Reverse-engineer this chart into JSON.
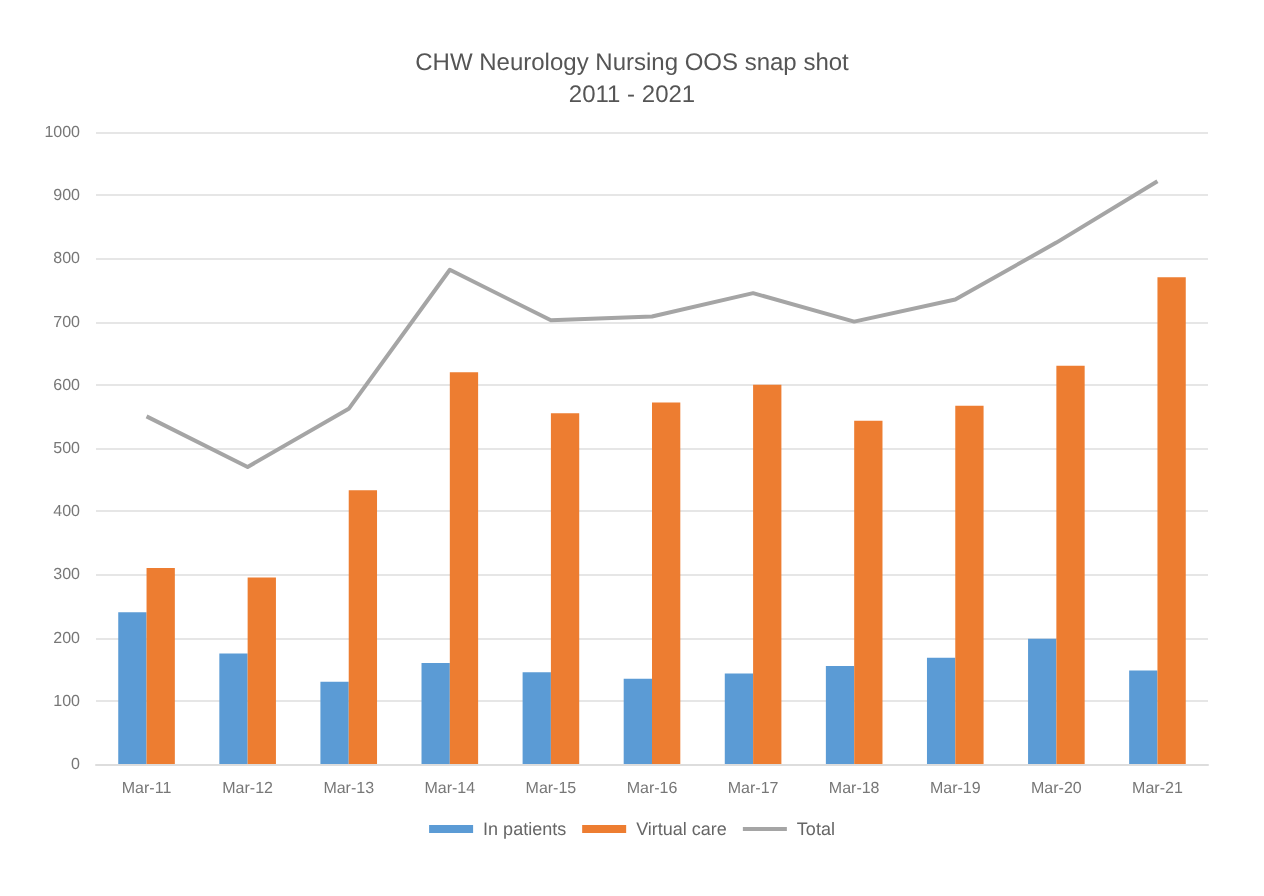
{
  "chart_data": {
    "type": "bar",
    "title": "CHW Neurology Nursing OOS snap shot\n2011 - 2021",
    "categories": [
      "Mar-11",
      "Mar-12",
      "Mar-13",
      "Mar-14",
      "Mar-15",
      "Mar-16",
      "Mar-17",
      "Mar-18",
      "Mar-19",
      "Mar-20",
      "Mar-21"
    ],
    "series": [
      {
        "name": "In patients",
        "color": "#5b9bd5",
        "values": [
          240,
          175,
          130,
          160,
          145,
          135,
          143,
          155,
          168,
          198,
          148
        ]
      },
      {
        "name": "Virtual care",
        "color": "#ed7d31",
        "values": [
          310,
          295,
          433,
          620,
          555,
          572,
          600,
          543,
          567,
          630,
          770
        ]
      },
      {
        "name": "Total",
        "type": "line",
        "color": "#a5a5a5",
        "values": [
          550,
          470,
          562,
          782,
          702,
          708,
          745,
          700,
          735,
          825,
          922
        ]
      }
    ],
    "ylim": [
      0,
      1000
    ],
    "yticks": [
      0,
      100,
      200,
      300,
      400,
      500,
      600,
      700,
      800,
      900,
      1000
    ],
    "grid": "y",
    "legend": "bottom",
    "marker": "none"
  }
}
